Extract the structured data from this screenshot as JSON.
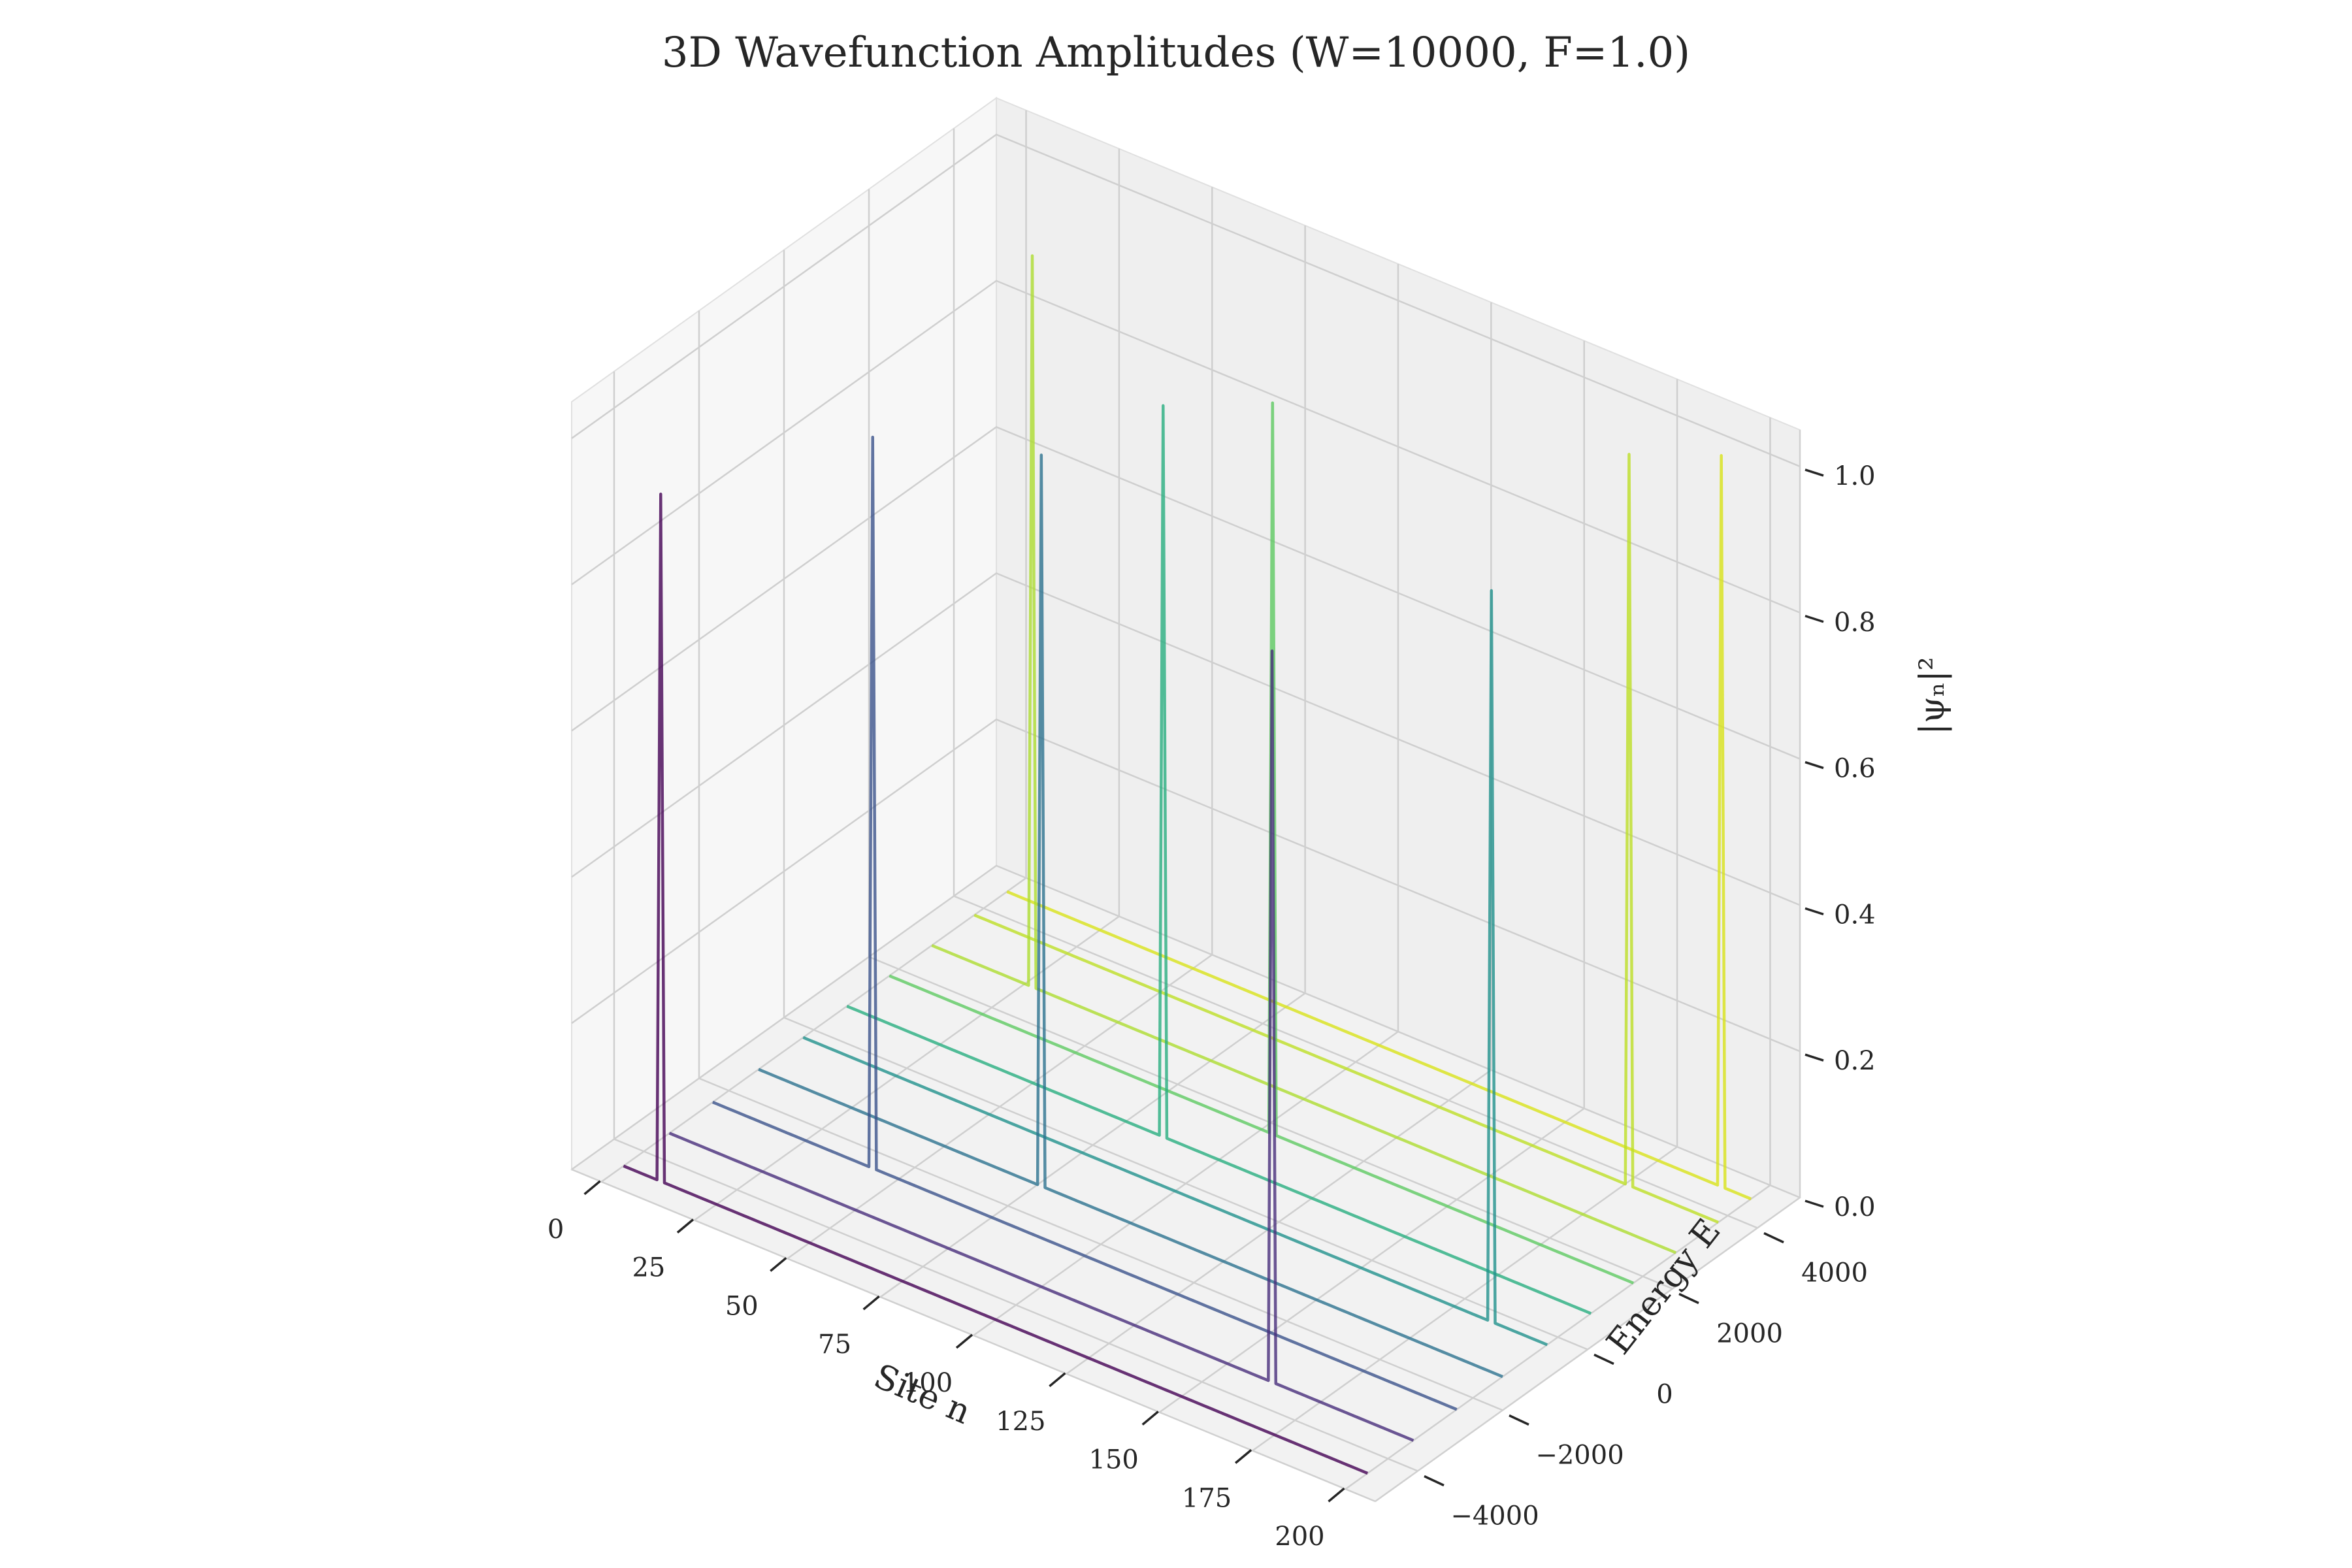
{
  "chart_data": {
    "type": "line",
    "projection": "3d",
    "title": "3D Wavefunction Amplitudes (W=10000, F=1.0)",
    "xlabel": "Site n",
    "ylabel": "Energy E",
    "zlabel": "|ψₙ|²",
    "xlim": [
      -8,
      208
    ],
    "ylim": [
      -5000,
      5000
    ],
    "zlim": [
      0,
      1.05
    ],
    "xticks": [
      "0",
      "25",
      "50",
      "75",
      "100",
      "125",
      "150",
      "175",
      "200"
    ],
    "yticks": [
      "−4000",
      "−2000",
      "0",
      "2000",
      "4000"
    ],
    "zticks": [
      "0.0",
      "0.2",
      "0.4",
      "0.6",
      "0.8",
      "1.0"
    ],
    "grid": true,
    "colormap": "viridis",
    "series": [
      {
        "energy": -4480,
        "peak_site": 10,
        "peak_amplitude": 0.94,
        "color": "#440154"
      },
      {
        "energy": -3400,
        "peak_site": 162,
        "peak_amplitude": 1.0,
        "color": "#472d7b"
      },
      {
        "energy": -2380,
        "peak_site": 43,
        "peak_amplitude": 1.0,
        "color": "#3b528b"
      },
      {
        "energy": -1300,
        "peak_site": 76,
        "peak_amplitude": 1.0,
        "color": "#2c728e"
      },
      {
        "energy": -250,
        "peak_site": 185,
        "peak_amplitude": 1.0,
        "color": "#21918c"
      },
      {
        "energy": 780,
        "peak_site": 85,
        "peak_amplitude": 1.0,
        "color": "#28ae80"
      },
      {
        "energy": 1780,
        "peak_site": 103,
        "peak_amplitude": 1.0,
        "color": "#5ec962"
      },
      {
        "energy": 2780,
        "peak_site": 27,
        "peak_amplitude": 1.0,
        "color": "#addc30"
      },
      {
        "energy": 3780,
        "peak_site": 176,
        "peak_amplitude": 1.0,
        "color": "#bddf26"
      },
      {
        "energy": 4550,
        "peak_site": 192,
        "peak_amplitude": 1.0,
        "color": "#d8e219"
      }
    ]
  }
}
